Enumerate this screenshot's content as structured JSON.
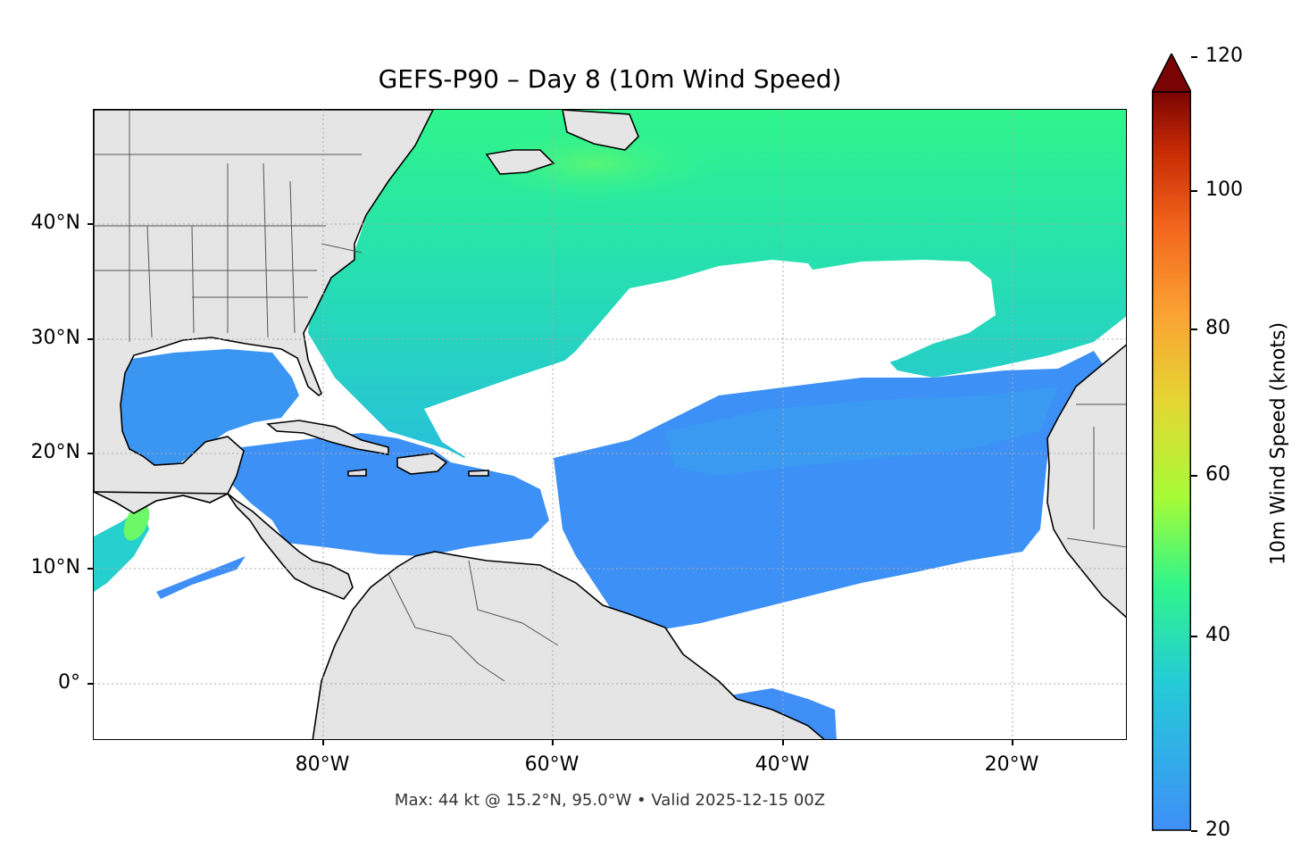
{
  "title": "GEFS-P90 – Day 8 (10m Wind Speed)",
  "footer": "Max: 44 kt @ 15.2°N, 95.0°W • Valid 2025-12-15 00Z",
  "axes": {
    "lat_labels": [
      "40°N",
      "30°N",
      "20°N",
      "10°N",
      "0°"
    ],
    "lon_labels": [
      "80°W",
      "60°W",
      "40°W",
      "20°W"
    ],
    "lat_values": [
      40,
      30,
      20,
      10,
      0
    ],
    "lon_values": [
      -80,
      -60,
      -40,
      -20
    ],
    "lon_range": [
      -100,
      -10
    ],
    "lat_range": [
      -5,
      50
    ],
    "gridlines": true
  },
  "colorbar": {
    "label": "10m Wind Speed (knots)",
    "tick_labels": [
      "20",
      "40",
      "60",
      "80",
      "100",
      "120"
    ],
    "tick_values": [
      20,
      40,
      60,
      80,
      100,
      120
    ],
    "range": [
      20,
      120
    ],
    "extend": "max",
    "colors": [
      "#3f8ff7",
      "#24cbd7",
      "#2ff58b",
      "#a6fb36",
      "#e4d633",
      "#fba233",
      "#f2641c",
      "#c72a04",
      "#7a0403"
    ]
  },
  "colors": {
    "land": "#e5e5e5",
    "ocean_wind_low": "#3f8ff7",
    "ocean_wind_mid": "#24cbd7",
    "ocean_wind_high": "#2ff58b"
  }
}
